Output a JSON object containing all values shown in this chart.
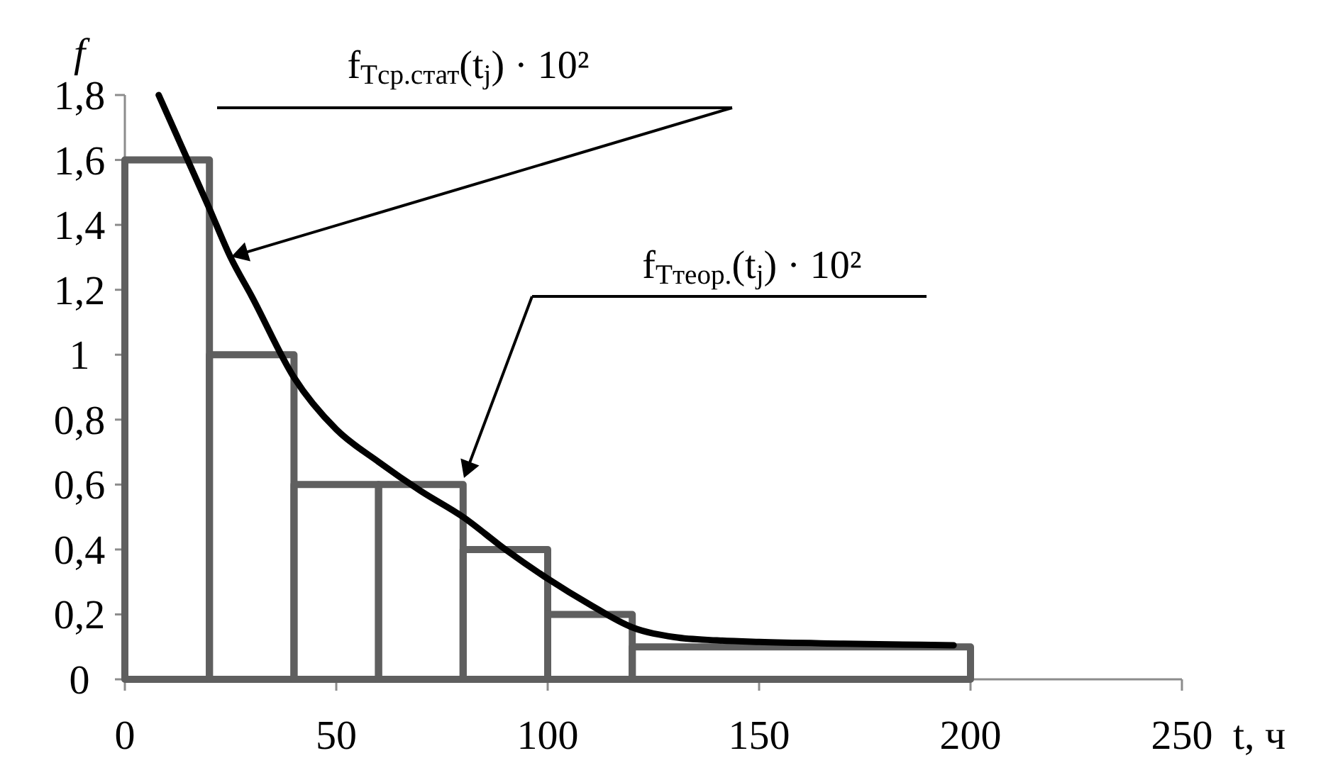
{
  "chart_data": {
    "type": "histogram",
    "xlabel": "t, ч",
    "ylabel": "f",
    "bins": [
      0,
      20,
      40,
      60,
      80,
      100,
      120,
      200
    ],
    "values": [
      1.6,
      1.0,
      0.6,
      0.6,
      0.4,
      0.2,
      0.1
    ],
    "color": "#5f5f5f",
    "series": [
      {
        "type": "line",
        "color": "#000000",
        "x": [
          8,
          20,
          25,
          30,
          40,
          50,
          60,
          70,
          80,
          90,
          100,
          110,
          120,
          130,
          140,
          150,
          170,
          196
        ],
        "values": [
          1.8,
          1.45,
          1.3,
          1.18,
          0.93,
          0.77,
          0.67,
          0.58,
          0.5,
          0.4,
          0.31,
          0.23,
          0.16,
          0.13,
          0.12,
          0.115,
          0.11,
          0.105
        ]
      }
    ],
    "xlim": [
      0,
      250
    ],
    "xticks": [
      0,
      50,
      100,
      150,
      200,
      250
    ],
    "ylim": [
      0,
      1.8
    ],
    "yticks": [
      0,
      {
        "value": 0.2,
        "label": "0,2"
      },
      {
        "value": 0.4,
        "label": "0,4"
      },
      {
        "value": 0.6,
        "label": "0,6"
      },
      {
        "value": 0.8,
        "label": "0,8"
      },
      1,
      {
        "value": 1.2,
        "label": "1,2"
      },
      {
        "value": 1.4,
        "label": "1,4"
      },
      {
        "value": 1.6,
        "label": "1,6"
      },
      {
        "value": 1.8,
        "label": "1,8"
      }
    ],
    "annotations": [
      "f$_{Tср.стат}$(t$_{j}$) · 10²",
      "f$_{Tтеор.}$(t$_{j}$) · 10²"
    ],
    "grid": false
  }
}
